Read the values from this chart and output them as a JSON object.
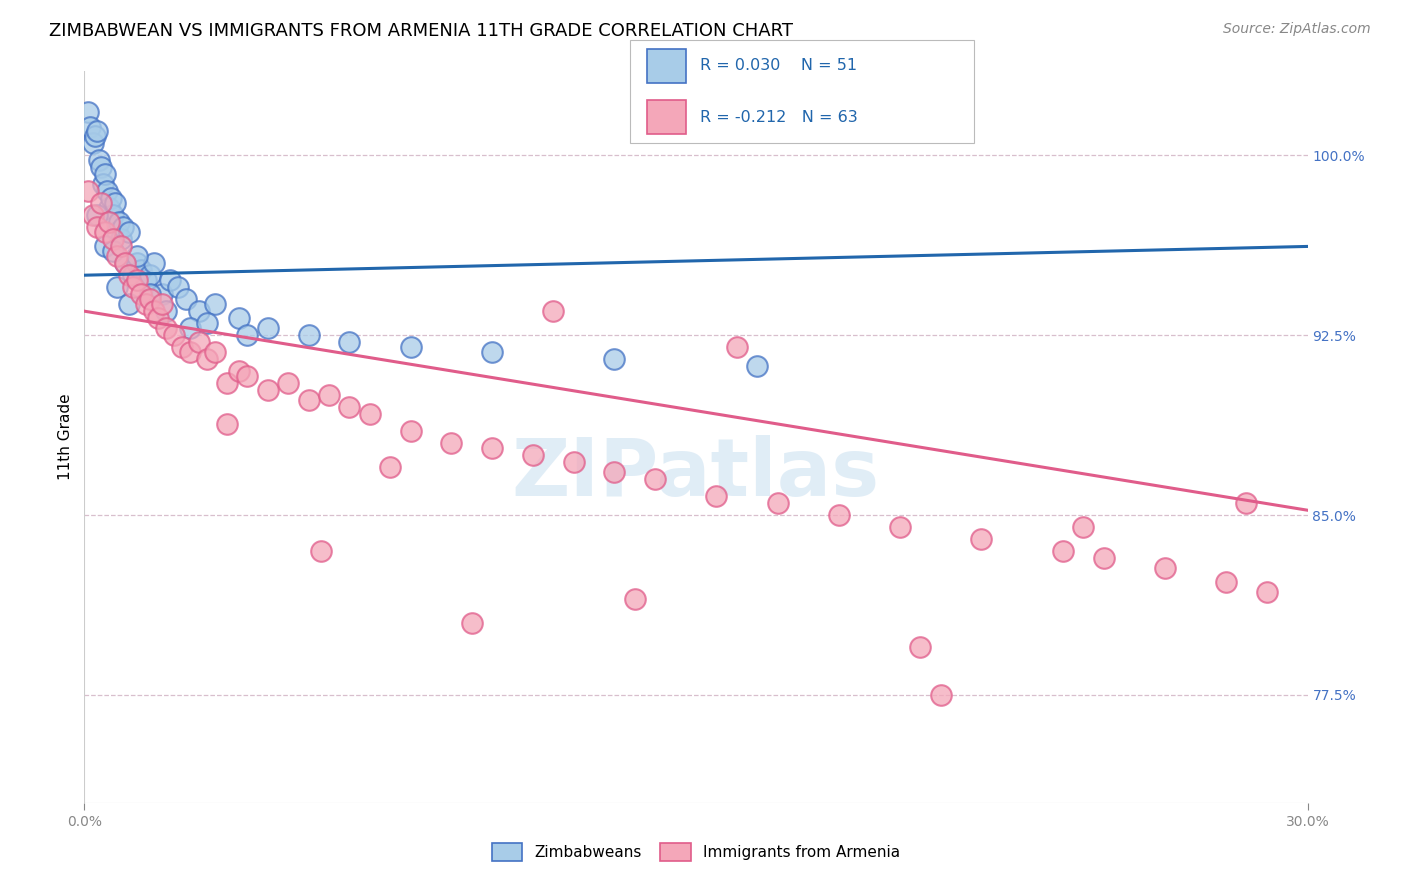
{
  "title": "ZIMBABWEAN VS IMMIGRANTS FROM ARMENIA 11TH GRADE CORRELATION CHART",
  "source_text": "Source: ZipAtlas.com",
  "ylabel": "11th Grade",
  "legend_blue_r": "R = 0.030",
  "legend_blue_n": "N = 51",
  "legend_pink_r": "R = -0.212",
  "legend_pink_n": "N = 63",
  "legend_blue_label": "Zimbabweans",
  "legend_pink_label": "Immigrants from Armenia",
  "right_yticks": [
    77.5,
    85.0,
    92.5,
    100.0
  ],
  "right_ytick_labels": [
    "77.5%",
    "85.0%",
    "92.5%",
    "100.0%"
  ],
  "xmin": 0.0,
  "xmax": 30.0,
  "ymin": 73.0,
  "ymax": 103.5,
  "blue_fill": "#a8cce8",
  "blue_edge": "#4472c4",
  "pink_fill": "#f4a7b9",
  "pink_edge": "#e05c8a",
  "blue_line_color": "#2166ac",
  "pink_line_color": "#e05c8a",
  "blue_scatter_x": [
    0.1,
    0.15,
    0.2,
    0.25,
    0.3,
    0.35,
    0.4,
    0.45,
    0.5,
    0.55,
    0.6,
    0.65,
    0.7,
    0.75,
    0.8,
    0.85,
    0.9,
    0.95,
    1.0,
    1.1,
    1.2,
    1.3,
    1.4,
    1.5,
    1.6,
    1.7,
    1.9,
    2.1,
    2.3,
    2.5,
    2.8,
    3.2,
    3.8,
    4.5,
    5.5,
    6.5,
    8.0,
    10.0,
    13.0,
    16.5,
    0.5,
    0.8,
    1.1,
    1.6,
    2.0,
    2.6,
    3.0,
    4.0,
    0.3,
    0.7,
    1.3
  ],
  "blue_scatter_y": [
    101.8,
    101.2,
    100.5,
    100.8,
    101.0,
    99.8,
    99.5,
    98.8,
    99.2,
    98.5,
    97.8,
    98.2,
    97.5,
    98.0,
    96.8,
    97.2,
    96.5,
    97.0,
    95.5,
    96.8,
    95.0,
    95.5,
    95.2,
    94.8,
    95.0,
    95.5,
    94.2,
    94.8,
    94.5,
    94.0,
    93.5,
    93.8,
    93.2,
    92.8,
    92.5,
    92.2,
    92.0,
    91.8,
    91.5,
    91.2,
    96.2,
    94.5,
    93.8,
    94.2,
    93.5,
    92.8,
    93.0,
    92.5,
    97.5,
    96.0,
    95.8
  ],
  "pink_scatter_x": [
    0.1,
    0.2,
    0.3,
    0.4,
    0.5,
    0.6,
    0.7,
    0.8,
    0.9,
    1.0,
    1.1,
    1.2,
    1.3,
    1.4,
    1.5,
    1.6,
    1.7,
    1.8,
    1.9,
    2.0,
    2.2,
    2.4,
    2.6,
    2.8,
    3.0,
    3.2,
    3.5,
    3.8,
    4.0,
    4.5,
    5.0,
    5.5,
    6.0,
    6.5,
    7.0,
    8.0,
    9.0,
    10.0,
    11.0,
    12.0,
    13.0,
    14.0,
    15.5,
    17.0,
    18.5,
    20.0,
    22.0,
    24.0,
    25.0,
    26.5,
    28.0,
    29.0,
    3.5,
    7.5,
    11.5,
    16.0,
    5.8,
    9.5,
    13.5,
    20.5,
    24.5,
    28.5,
    21.0
  ],
  "pink_scatter_y": [
    98.5,
    97.5,
    97.0,
    98.0,
    96.8,
    97.2,
    96.5,
    95.8,
    96.2,
    95.5,
    95.0,
    94.5,
    94.8,
    94.2,
    93.8,
    94.0,
    93.5,
    93.2,
    93.8,
    92.8,
    92.5,
    92.0,
    91.8,
    92.2,
    91.5,
    91.8,
    90.5,
    91.0,
    90.8,
    90.2,
    90.5,
    89.8,
    90.0,
    89.5,
    89.2,
    88.5,
    88.0,
    87.8,
    87.5,
    87.2,
    86.8,
    86.5,
    85.8,
    85.5,
    85.0,
    84.5,
    84.0,
    83.5,
    83.2,
    82.8,
    82.2,
    81.8,
    88.8,
    87.0,
    93.5,
    92.0,
    83.5,
    80.5,
    81.5,
    79.5,
    84.5,
    85.5,
    77.5
  ],
  "watermark_text": "ZIPatlas",
  "background_color": "#ffffff",
  "grid_color": "#d4b8c8",
  "title_fontsize": 13,
  "source_fontsize": 10,
  "axis_label_fontsize": 11,
  "blue_line_y0": 95.0,
  "blue_line_y1": 96.2,
  "pink_line_y0": 93.5,
  "pink_line_y1": 85.2
}
